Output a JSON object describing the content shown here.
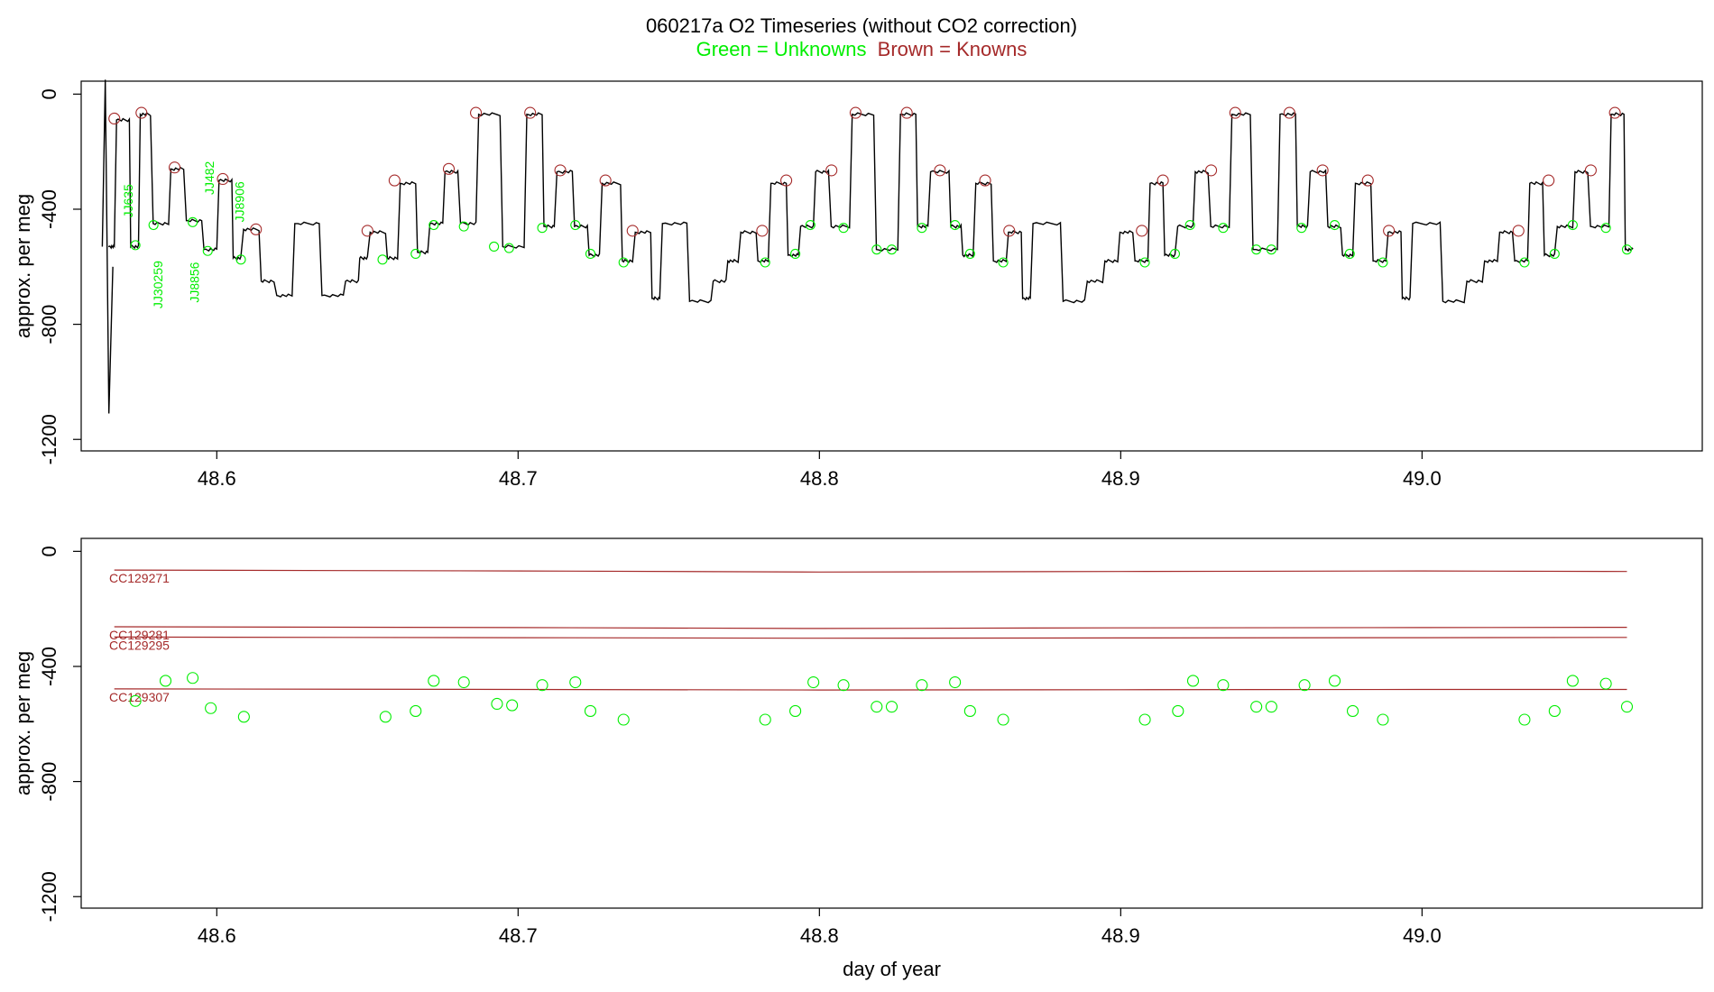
{
  "title": {
    "line1": "060217a   O2 Timeseries (without CO2 correction)",
    "line2_green": "Green = Unknowns",
    "line2_brown": "Brown = Knowns"
  },
  "colors": {
    "unknown": "#00ee00",
    "known": "#a52a2a",
    "trace": "#000000",
    "axis": "#000000"
  },
  "chart_data": [
    {
      "type": "line",
      "panel": "top",
      "ylabel": "approx. per meg",
      "xlabel": "",
      "xlim": [
        48.555,
        49.093
      ],
      "ylim": [
        -1240,
        45
      ],
      "xticks": [
        48.6,
        48.7,
        48.8,
        48.9,
        49.0
      ],
      "xtick_labels": [
        "48.6",
        "48.7",
        "48.8",
        "48.9",
        "49.0"
      ],
      "yticks": [
        0,
        -400,
        -800,
        -1200
      ],
      "ytick_labels": [
        "0",
        "-400",
        "-800",
        "-1200"
      ],
      "trace_segments": [
        [
          48.564,
          -530
        ],
        [
          48.566,
          -90
        ],
        [
          48.571,
          -530
        ],
        [
          48.574,
          -70
        ],
        [
          48.578,
          -450
        ],
        [
          48.584,
          -260
        ],
        [
          48.589,
          -440
        ],
        [
          48.595,
          -540
        ],
        [
          48.6,
          -300
        ],
        [
          48.605,
          -570
        ],
        [
          48.608,
          -470
        ],
        [
          48.614,
          -650
        ],
        [
          48.619,
          -700
        ],
        [
          48.625,
          -450
        ],
        [
          48.634,
          -700
        ],
        [
          48.642,
          -650
        ],
        [
          48.647,
          -570
        ],
        [
          48.65,
          -480
        ],
        [
          48.656,
          -570
        ],
        [
          48.66,
          -310
        ],
        [
          48.666,
          -550
        ],
        [
          48.67,
          -450
        ],
        [
          48.675,
          -270
        ],
        [
          48.68,
          -450
        ],
        [
          48.686,
          -70
        ],
        [
          48.694,
          -530
        ],
        [
          48.702,
          -70
        ],
        [
          48.708,
          -460
        ],
        [
          48.712,
          -270
        ],
        [
          48.718,
          -460
        ],
        [
          48.723,
          -560
        ],
        [
          48.727,
          -310
        ],
        [
          48.734,
          -580
        ],
        [
          48.738,
          -480
        ],
        [
          48.744,
          -710
        ],
        [
          48.747,
          -450
        ],
        [
          48.756,
          -720
        ],
        [
          48.764,
          -650
        ],
        [
          48.769,
          -580
        ],
        [
          48.773,
          -480
        ],
        [
          48.779,
          -580
        ],
        [
          48.783,
          -310
        ],
        [
          48.789,
          -560
        ],
        [
          48.793,
          -460
        ],
        [
          48.798,
          -270
        ],
        [
          48.803,
          -460
        ],
        [
          48.81,
          -70
        ],
        [
          48.818,
          -540
        ],
        [
          48.826,
          -70
        ],
        [
          48.832,
          -460
        ],
        [
          48.836,
          -270
        ],
        [
          48.843,
          -460
        ],
        [
          48.847,
          -560
        ],
        [
          48.851,
          -310
        ],
        [
          48.857,
          -580
        ],
        [
          48.862,
          -480
        ],
        [
          48.867,
          -710
        ],
        [
          48.87,
          -450
        ],
        [
          48.88,
          -720
        ],
        [
          48.888,
          -650
        ],
        [
          48.894,
          -580
        ],
        [
          48.899,
          -480
        ],
        [
          48.904,
          -580
        ],
        [
          48.909,
          -310
        ],
        [
          48.914,
          -560
        ],
        [
          48.918,
          -460
        ],
        [
          48.924,
          -270
        ],
        [
          48.929,
          -460
        ],
        [
          48.936,
          -70
        ],
        [
          48.943,
          -540
        ],
        [
          48.952,
          -70
        ],
        [
          48.958,
          -460
        ],
        [
          48.962,
          -270
        ],
        [
          48.968,
          -460
        ],
        [
          48.973,
          -560
        ],
        [
          48.977,
          -310
        ],
        [
          48.983,
          -580
        ],
        [
          48.988,
          -480
        ],
        [
          48.993,
          -710
        ],
        [
          48.996,
          -450
        ],
        [
          49.006,
          -720
        ],
        [
          49.014,
          -650
        ],
        [
          49.02,
          -580
        ],
        [
          49.025,
          -480
        ],
        [
          49.03,
          -580
        ],
        [
          49.035,
          -310
        ],
        [
          49.04,
          -560
        ],
        [
          49.044,
          -460
        ],
        [
          49.05,
          -270
        ],
        [
          49.055,
          -460
        ],
        [
          49.062,
          -70
        ],
        [
          49.067,
          -540
        ]
      ],
      "spike": [
        [
          48.562,
          -530
        ],
        [
          48.563,
          50
        ],
        [
          48.5642,
          -1110
        ],
        [
          48.5655,
          -600
        ]
      ],
      "known_points": [
        [
          48.566,
          -85
        ],
        [
          48.575,
          -65
        ],
        [
          48.586,
          -255
        ],
        [
          48.602,
          -295
        ],
        [
          48.613,
          -470
        ],
        [
          48.65,
          -475
        ],
        [
          48.659,
          -300
        ],
        [
          48.677,
          -260
        ],
        [
          48.686,
          -65
        ],
        [
          48.704,
          -65
        ],
        [
          48.714,
          -265
        ],
        [
          48.729,
          -300
        ],
        [
          48.738,
          -475
        ],
        [
          48.781,
          -475
        ],
        [
          48.789,
          -300
        ],
        [
          48.804,
          -265
        ],
        [
          48.812,
          -65
        ],
        [
          48.829,
          -65
        ],
        [
          48.84,
          -265
        ],
        [
          48.855,
          -300
        ],
        [
          48.863,
          -475
        ],
        [
          48.907,
          -475
        ],
        [
          48.914,
          -300
        ],
        [
          48.93,
          -265
        ],
        [
          48.938,
          -65
        ],
        [
          48.956,
          -65
        ],
        [
          48.967,
          -265
        ],
        [
          48.982,
          -300
        ],
        [
          48.989,
          -475
        ],
        [
          49.032,
          -475
        ],
        [
          49.042,
          -300
        ],
        [
          49.056,
          -265
        ],
        [
          49.064,
          -65
        ]
      ],
      "unknown_points": [
        [
          48.573,
          -525
        ],
        [
          48.579,
          -455
        ],
        [
          48.592,
          -445
        ],
        [
          48.597,
          -545
        ],
        [
          48.608,
          -575
        ],
        [
          48.655,
          -575
        ],
        [
          48.666,
          -555
        ],
        [
          48.672,
          -455
        ],
        [
          48.682,
          -460
        ],
        [
          48.692,
          -530
        ],
        [
          48.697,
          -535
        ],
        [
          48.708,
          -465
        ],
        [
          48.719,
          -455
        ],
        [
          48.724,
          -555
        ],
        [
          48.735,
          -585
        ],
        [
          48.782,
          -585
        ],
        [
          48.792,
          -555
        ],
        [
          48.797,
          -455
        ],
        [
          48.808,
          -465
        ],
        [
          48.819,
          -540
        ],
        [
          48.824,
          -540
        ],
        [
          48.834,
          -465
        ],
        [
          48.845,
          -455
        ],
        [
          48.85,
          -555
        ],
        [
          48.861,
          -585
        ],
        [
          48.908,
          -585
        ],
        [
          48.918,
          -555
        ],
        [
          48.923,
          -455
        ],
        [
          48.934,
          -465
        ],
        [
          48.945,
          -540
        ],
        [
          48.95,
          -540
        ],
        [
          48.96,
          -465
        ],
        [
          48.971,
          -455
        ],
        [
          48.976,
          -555
        ],
        [
          48.987,
          -585
        ],
        [
          49.034,
          -585
        ],
        [
          49.044,
          -555
        ],
        [
          49.05,
          -455
        ],
        [
          49.061,
          -465
        ],
        [
          49.068,
          -540
        ]
      ],
      "annotations": [
        {
          "text": "JJ635",
          "x": 48.572,
          "y": -430
        },
        {
          "text": "JJ30259",
          "x": 48.582,
          "y": -745
        },
        {
          "text": "JJ8856",
          "x": 48.594,
          "y": -725
        },
        {
          "text": "JJ482",
          "x": 48.599,
          "y": -350
        },
        {
          "text": "JJ8906",
          "x": 48.609,
          "y": -445
        }
      ]
    },
    {
      "type": "scatter",
      "panel": "bottom",
      "ylabel": "approx. per meg",
      "xlabel": "day of year",
      "xlim": [
        48.555,
        49.093
      ],
      "ylim": [
        -1240,
        45
      ],
      "xticks": [
        48.6,
        48.7,
        48.8,
        48.9,
        49.0
      ],
      "xtick_labels": [
        "48.6",
        "48.7",
        "48.8",
        "48.9",
        "49.0"
      ],
      "yticks": [
        0,
        -400,
        -800,
        -1200
      ],
      "ytick_labels": [
        "0",
        "-400",
        "-800",
        "-1200"
      ],
      "known_lines": [
        {
          "name": "CC129271",
          "points": [
            [
              48.566,
              -65
            ],
            [
              48.7,
              -68
            ],
            [
              48.8,
              -72
            ],
            [
              48.9,
              -70
            ],
            [
              49.0,
              -68
            ],
            [
              49.068,
              -70
            ]
          ]
        },
        {
          "name": "CC129281",
          "points": [
            [
              48.566,
              -262
            ],
            [
              48.7,
              -265
            ],
            [
              48.8,
              -268
            ],
            [
              48.9,
              -266
            ],
            [
              49.0,
              -265
            ],
            [
              49.068,
              -264
            ]
          ]
        },
        {
          "name": "CC129295",
          "points": [
            [
              48.566,
              -298
            ],
            [
              48.7,
              -300
            ],
            [
              48.8,
              -302
            ],
            [
              48.9,
              -301
            ],
            [
              49.0,
              -300
            ],
            [
              49.068,
              -299
            ]
          ]
        },
        {
          "name": "CC129307",
          "points": [
            [
              48.566,
              -478
            ],
            [
              48.7,
              -480
            ],
            [
              48.8,
              -482
            ],
            [
              48.9,
              -481
            ],
            [
              49.0,
              -480
            ],
            [
              49.068,
              -480
            ]
          ]
        }
      ],
      "unknown_points": [
        [
          48.573,
          -520
        ],
        [
          48.583,
          -450
        ],
        [
          48.592,
          -440
        ],
        [
          48.598,
          -545
        ],
        [
          48.609,
          -575
        ],
        [
          48.656,
          -575
        ],
        [
          48.666,
          -555
        ],
        [
          48.672,
          -450
        ],
        [
          48.682,
          -455
        ],
        [
          48.693,
          -530
        ],
        [
          48.698,
          -535
        ],
        [
          48.708,
          -465
        ],
        [
          48.719,
          -455
        ],
        [
          48.724,
          -555
        ],
        [
          48.735,
          -585
        ],
        [
          48.782,
          -585
        ],
        [
          48.792,
          -555
        ],
        [
          48.798,
          -455
        ],
        [
          48.808,
          -465
        ],
        [
          48.819,
          -540
        ],
        [
          48.824,
          -540
        ],
        [
          48.834,
          -465
        ],
        [
          48.845,
          -455
        ],
        [
          48.85,
          -555
        ],
        [
          48.861,
          -585
        ],
        [
          48.908,
          -585
        ],
        [
          48.919,
          -555
        ],
        [
          48.924,
          -450
        ],
        [
          48.934,
          -465
        ],
        [
          48.945,
          -540
        ],
        [
          48.95,
          -540
        ],
        [
          48.961,
          -465
        ],
        [
          48.971,
          -450
        ],
        [
          48.977,
          -555
        ],
        [
          48.987,
          -585
        ],
        [
          49.034,
          -585
        ],
        [
          49.044,
          -555
        ],
        [
          49.05,
          -450
        ],
        [
          49.061,
          -460
        ],
        [
          49.068,
          -540
        ]
      ]
    }
  ]
}
